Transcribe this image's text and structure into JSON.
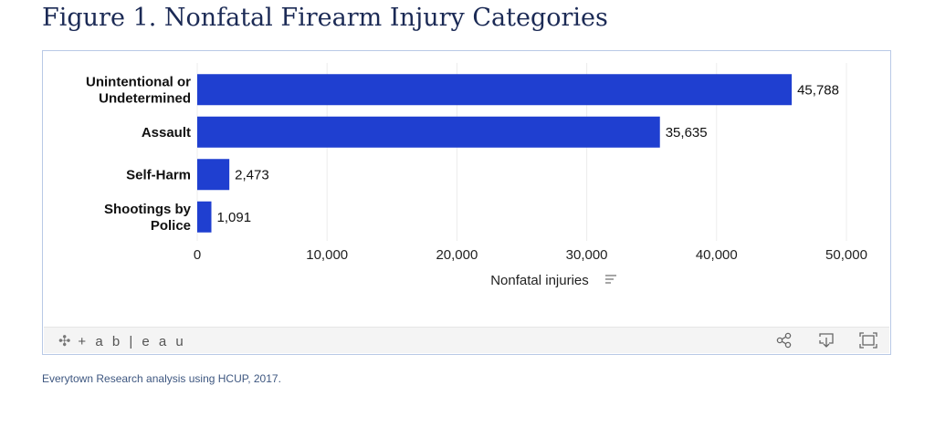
{
  "title": "Figure 1. Nonfatal Firearm Injury Categories",
  "source_note": "Everytown Research analysis using HCUP, 2017.",
  "toolbar": {
    "logo_text": "+ a b | e a u",
    "icons": [
      "share-icon",
      "download-icon",
      "fullscreen-icon"
    ]
  },
  "colors": {
    "bar": "#1f3fd0",
    "title": "#1b2a55",
    "grid": "#ececec"
  },
  "chart_data": {
    "type": "bar",
    "orientation": "horizontal",
    "categories": [
      [
        "Unintentional or",
        "Undetermined"
      ],
      [
        "Assault"
      ],
      [
        "Self-Harm"
      ],
      [
        "Shootings by",
        "Police"
      ]
    ],
    "values": [
      45788,
      35635,
      2473,
      1091
    ],
    "value_labels": [
      "45,788",
      "35,635",
      "2,473",
      "1,091"
    ],
    "xlim": [
      0,
      50000
    ],
    "x_ticks": [
      0,
      10000,
      20000,
      30000,
      40000,
      50000
    ],
    "x_tick_labels": [
      "0",
      "10,000",
      "20,000",
      "30,000",
      "40,000",
      "50,000"
    ],
    "xlabel": "Nonfatal injuries",
    "grid": true
  }
}
